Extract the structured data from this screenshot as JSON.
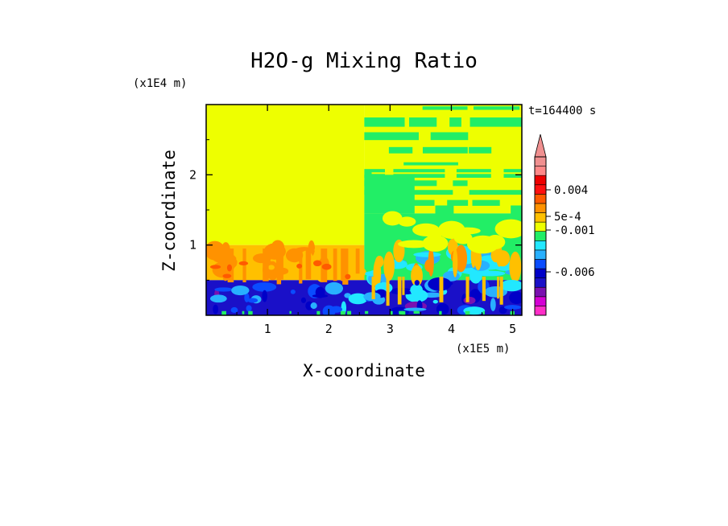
{
  "chart_data": {
    "type": "heatmap",
    "title": "H2O-g Mixing Ratio",
    "xlabel": "X-coordinate",
    "ylabel": "Z-coordinate",
    "x_multiplier": "(x1E5 m)",
    "y_multiplier": "(x1E4 m)",
    "time_label": "t=164400 s",
    "x_ticks": [
      "1",
      "2",
      "3",
      "4",
      "5"
    ],
    "y_ticks": [
      "1",
      "2"
    ],
    "x_tick_values": [
      1,
      2,
      3,
      4,
      5
    ],
    "y_tick_values": [
      1,
      2
    ],
    "xlim": [
      0,
      5.15
    ],
    "ylim": [
      0,
      3.0
    ],
    "colorbar_labels": [
      "0.004",
      "5e-4",
      "-0.001",
      "-0.006"
    ],
    "colorbar_label_values": [
      0.004,
      0.0005,
      -0.001,
      -0.006
    ],
    "colorbar_colors": [
      "#ff2ec8",
      "#d400d4",
      "#7a10b0",
      "#1a10c8",
      "#0000c8",
      "#0a4cff",
      "#28b0ff",
      "#22e8ff",
      "#22ee66",
      "#eeff00",
      "#ffc000",
      "#ff9200",
      "#ff5a00",
      "#ff1010",
      "#ee0000",
      "#ff8888",
      "#f09090"
    ],
    "regions": [
      {
        "name": "upper-left",
        "x": [
          0,
          2.58
        ],
        "z": [
          1.0,
          3.0
        ],
        "color": "#eeff00"
      },
      {
        "name": "upper-right",
        "x": [
          2.58,
          5.15
        ],
        "z": [
          1.45,
          3.0
        ],
        "color": "#eeff00",
        "pattern": "green-bands"
      },
      {
        "name": "middle-left",
        "x": [
          0,
          2.58
        ],
        "z": [
          0.5,
          1.0
        ],
        "color": "#ffc000",
        "pattern": "orange-plumes"
      },
      {
        "name": "middle-right",
        "x": [
          2.58,
          5.15
        ],
        "z": [
          0.5,
          1.45
        ],
        "color": "#22ee66",
        "pattern": "cyan-orange-mix"
      },
      {
        "name": "bottom",
        "x": [
          0,
          5.15
        ],
        "z": [
          0,
          0.5
        ],
        "color": "#1a10c8",
        "pattern": "blue-turbulent"
      }
    ]
  }
}
